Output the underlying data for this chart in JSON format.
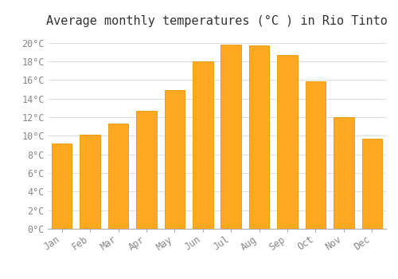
{
  "title": "Average monthly temperatures (°C ) in Rio Tinto",
  "months": [
    "Jan",
    "Feb",
    "Mar",
    "Apr",
    "May",
    "Jun",
    "Jul",
    "Aug",
    "Sep",
    "Oct",
    "Nov",
    "Dec"
  ],
  "temperatures": [
    9.2,
    10.1,
    11.3,
    12.7,
    14.9,
    18.0,
    19.8,
    19.7,
    18.7,
    15.9,
    12.0,
    9.7
  ],
  "bar_color": "#FFA820",
  "bar_edge_color": "#E8960A",
  "background_color": "#FFFFFF",
  "grid_color": "#DDDDDD",
  "title_fontsize": 11,
  "tick_fontsize": 8.5,
  "ylim": [
    0,
    21
  ],
  "yticks": [
    0,
    2,
    4,
    6,
    8,
    10,
    12,
    14,
    16,
    18,
    20
  ]
}
